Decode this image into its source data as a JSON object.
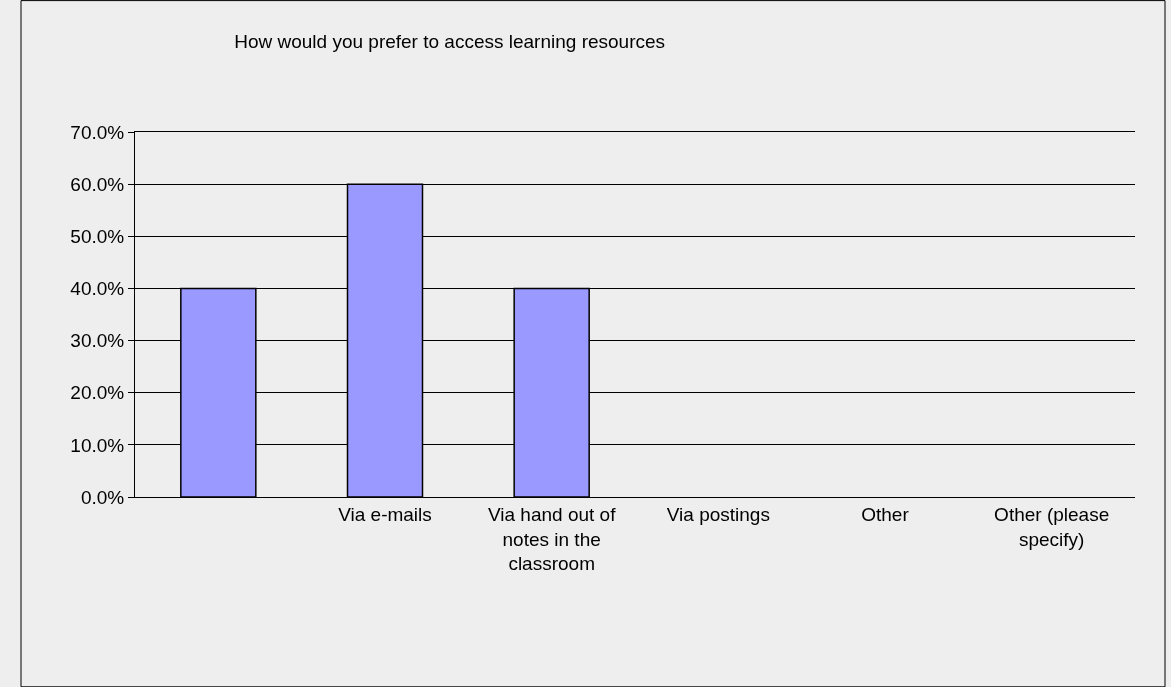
{
  "chart_data": {
    "type": "bar",
    "title": "How would you prefer to access learning resources",
    "categories": [
      null,
      "Via e-mails",
      "Via hand out of notes in the classroom",
      "Via postings",
      "Other",
      "Other (please specify)"
    ],
    "values": [
      40,
      60,
      40,
      0,
      0,
      0
    ],
    "color": "#9999ff",
    "ylim": [
      0,
      70
    ],
    "yticks": [
      {
        "value": 0,
        "label": "0.0%"
      },
      {
        "value": 10,
        "label": "10.0%"
      },
      {
        "value": 20,
        "label": "20.0%"
      },
      {
        "value": 30,
        "label": "30.0%"
      },
      {
        "value": 40,
        "label": "40.0%"
      },
      {
        "value": 50,
        "label": "50.0%"
      },
      {
        "value": 60,
        "label": "60.0%"
      },
      {
        "value": 70,
        "label": "70.0%"
      }
    ],
    "grid": "y"
  }
}
